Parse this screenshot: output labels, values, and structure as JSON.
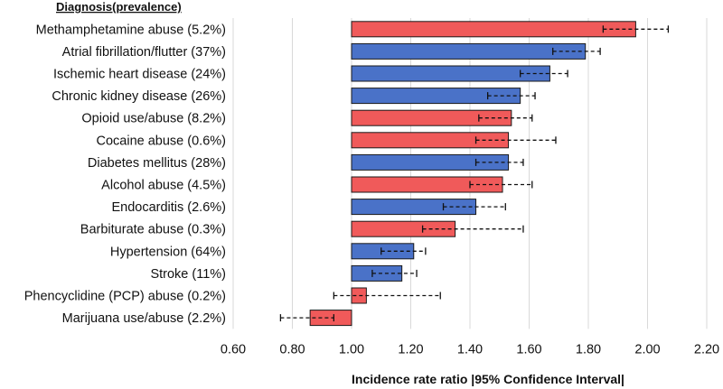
{
  "chart_data": {
    "type": "bar",
    "orientation": "horizontal",
    "legend_header": "Diagnosis(prevalence)",
    "xlabel": "Incidence rate ratio |95% Confidence Interval|",
    "reference_value": 1.0,
    "xlim": [
      0.6,
      2.2
    ],
    "xticks": [
      "0.60",
      "0.80",
      "1.00",
      "1.20",
      "1.40",
      "1.60",
      "1.80",
      "2.00",
      "2.20"
    ],
    "grid": "vertical",
    "colors": {
      "substance": "#f05a5a",
      "medical": "#4a72c8",
      "border": "#1a1a1a"
    },
    "categories": [
      "Methamphetamine abuse (5.2%)",
      "Atrial fibrillation/flutter (37%)",
      "Ischemic heart disease (24%)",
      "Chronic kidney disease (26%)",
      "Opioid use/abuse (8.2%)",
      "Cocaine abuse (0.6%)",
      "Diabetes mellitus (28%)",
      "Alcohol abuse (4.5%)",
      "Endocarditis (2.6%)",
      "Barbiturate abuse (0.3%)",
      "Hypertension (64%)",
      "Stroke (11%)",
      "Phencyclidine (PCP) abuse (0.2%)",
      "Marijuana use/abuse (2.2%)"
    ],
    "values": [
      1.96,
      1.79,
      1.67,
      1.57,
      1.54,
      1.53,
      1.53,
      1.51,
      1.42,
      1.35,
      1.21,
      1.17,
      1.05,
      0.86
    ],
    "ci_lower": [
      1.85,
      1.68,
      1.57,
      1.46,
      1.43,
      1.42,
      1.42,
      1.4,
      1.31,
      1.24,
      1.1,
      1.07,
      0.94,
      0.76
    ],
    "ci_upper": [
      2.07,
      1.84,
      1.73,
      1.62,
      1.61,
      1.69,
      1.58,
      1.61,
      1.52,
      1.58,
      1.25,
      1.22,
      1.3,
      0.94
    ],
    "group": [
      "substance",
      "medical",
      "medical",
      "medical",
      "substance",
      "substance",
      "medical",
      "substance",
      "medical",
      "substance",
      "medical",
      "medical",
      "substance",
      "substance"
    ]
  }
}
